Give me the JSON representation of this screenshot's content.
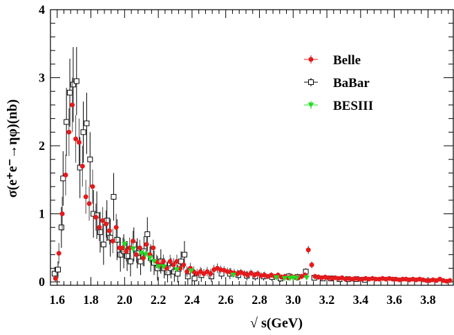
{
  "chart_data": {
    "type": "scatter",
    "xlabel": "√ s(GeV)",
    "ylabel": "σ(e⁺e⁻→ηφ)(nb)",
    "xlim": [
      1.56,
      3.95
    ],
    "ylim": [
      -0.05,
      4.0
    ],
    "x_ticks": [
      "1.6",
      "1.8",
      "2.0",
      "2.2",
      "2.4",
      "2.6",
      "2.8",
      "3.0",
      "3.2",
      "3.4",
      "3.6",
      "3.8"
    ],
    "x_tick_values": [
      1.6,
      1.8,
      2.0,
      2.2,
      2.4,
      2.6,
      2.8,
      3.0,
      3.2,
      3.4,
      3.6,
      3.8
    ],
    "y_ticks": [
      "0",
      "1",
      "2",
      "3",
      "4"
    ],
    "y_tick_values": [
      0,
      1,
      2,
      3,
      4
    ],
    "legend_position": "top-right",
    "colors": {
      "belle": "#e41a1c",
      "babar": "#000000",
      "besiii": "#22dd22"
    },
    "series": [
      {
        "name": "Belle",
        "marker": "filled-circle",
        "color": "#e41a1c",
        "points": [
          [
            1.59,
            0.05,
            0.05
          ],
          [
            1.61,
            0.42,
            0.15
          ],
          [
            1.63,
            1.0,
            0.25
          ],
          [
            1.65,
            1.57,
            0.3
          ],
          [
            1.67,
            2.2,
            0.35
          ],
          [
            1.69,
            2.6,
            0.4
          ],
          [
            1.71,
            2.1,
            0.35
          ],
          [
            1.73,
            2.05,
            0.35
          ],
          [
            1.75,
            1.7,
            0.3
          ],
          [
            1.77,
            1.25,
            0.25
          ],
          [
            1.79,
            1.15,
            0.25
          ],
          [
            1.81,
            1.4,
            0.25
          ],
          [
            1.83,
            0.95,
            0.2
          ],
          [
            1.85,
            0.8,
            0.2
          ],
          [
            1.87,
            0.9,
            0.2
          ],
          [
            1.89,
            0.85,
            0.2
          ],
          [
            1.91,
            0.75,
            0.2
          ],
          [
            1.93,
            0.6,
            0.18
          ],
          [
            1.95,
            0.8,
            0.2
          ],
          [
            1.97,
            0.5,
            0.15
          ],
          [
            1.99,
            0.5,
            0.15
          ],
          [
            2.01,
            0.45,
            0.15
          ],
          [
            2.03,
            0.5,
            0.15
          ],
          [
            2.05,
            0.6,
            0.15
          ],
          [
            2.07,
            0.4,
            0.12
          ],
          [
            2.09,
            0.5,
            0.12
          ],
          [
            2.11,
            0.35,
            0.12
          ],
          [
            2.13,
            0.55,
            0.12
          ],
          [
            2.15,
            0.4,
            0.12
          ],
          [
            2.17,
            0.5,
            0.12
          ],
          [
            2.19,
            0.3,
            0.1
          ],
          [
            2.21,
            0.25,
            0.1
          ],
          [
            2.23,
            0.3,
            0.1
          ],
          [
            2.25,
            0.2,
            0.1
          ],
          [
            2.27,
            0.3,
            0.1
          ],
          [
            2.29,
            0.25,
            0.1
          ],
          [
            2.31,
            0.3,
            0.1
          ],
          [
            2.33,
            0.2,
            0.08
          ],
          [
            2.35,
            0.25,
            0.08
          ],
          [
            2.37,
            0.15,
            0.08
          ],
          [
            2.39,
            0.2,
            0.08
          ],
          [
            2.41,
            0.15,
            0.08
          ],
          [
            2.43,
            0.12,
            0.07
          ],
          [
            2.45,
            0.15,
            0.07
          ],
          [
            2.47,
            0.12,
            0.07
          ],
          [
            2.49,
            0.15,
            0.07
          ],
          [
            2.51,
            0.12,
            0.07
          ],
          [
            2.53,
            0.18,
            0.07
          ],
          [
            2.55,
            0.2,
            0.07
          ],
          [
            2.57,
            0.18,
            0.06
          ],
          [
            2.59,
            0.17,
            0.06
          ],
          [
            2.61,
            0.15,
            0.06
          ],
          [
            2.63,
            0.14,
            0.06
          ],
          [
            2.65,
            0.13,
            0.06
          ],
          [
            2.67,
            0.12,
            0.06
          ],
          [
            2.69,
            0.14,
            0.05
          ],
          [
            2.71,
            0.12,
            0.05
          ],
          [
            2.73,
            0.1,
            0.05
          ],
          [
            2.75,
            0.13,
            0.05
          ],
          [
            2.77,
            0.1,
            0.05
          ],
          [
            2.79,
            0.12,
            0.05
          ],
          [
            2.81,
            0.09,
            0.05
          ],
          [
            2.83,
            0.1,
            0.05
          ],
          [
            2.85,
            0.08,
            0.04
          ],
          [
            2.87,
            0.1,
            0.04
          ],
          [
            2.89,
            0.08,
            0.04
          ],
          [
            2.91,
            0.1,
            0.04
          ],
          [
            2.93,
            0.07,
            0.04
          ],
          [
            2.95,
            0.08,
            0.04
          ],
          [
            2.97,
            0.06,
            0.04
          ],
          [
            2.99,
            0.08,
            0.04
          ],
          [
            3.01,
            0.07,
            0.04
          ],
          [
            3.03,
            0.06,
            0.04
          ],
          [
            3.05,
            0.08,
            0.04
          ],
          [
            3.07,
            0.1,
            0.04
          ],
          [
            3.09,
            0.47,
            0.06
          ],
          [
            3.11,
            0.25,
            0.05
          ],
          [
            3.13,
            0.08,
            0.04
          ],
          [
            3.15,
            0.07,
            0.04
          ],
          [
            3.17,
            0.06,
            0.03
          ],
          [
            3.19,
            0.07,
            0.03
          ],
          [
            3.21,
            0.06,
            0.03
          ],
          [
            3.23,
            0.05,
            0.03
          ],
          [
            3.25,
            0.06,
            0.03
          ],
          [
            3.27,
            0.05,
            0.03
          ],
          [
            3.29,
            0.06,
            0.03
          ],
          [
            3.31,
            0.04,
            0.03
          ],
          [
            3.33,
            0.05,
            0.03
          ],
          [
            3.35,
            0.04,
            0.03
          ],
          [
            3.37,
            0.05,
            0.03
          ],
          [
            3.39,
            0.04,
            0.03
          ],
          [
            3.41,
            0.04,
            0.03
          ],
          [
            3.43,
            0.05,
            0.03
          ],
          [
            3.45,
            0.04,
            0.03
          ],
          [
            3.47,
            0.05,
            0.03
          ],
          [
            3.49,
            0.04,
            0.03
          ],
          [
            3.51,
            0.04,
            0.03
          ],
          [
            3.53,
            0.05,
            0.03
          ],
          [
            3.55,
            0.04,
            0.03
          ],
          [
            3.57,
            0.05,
            0.03
          ],
          [
            3.59,
            0.04,
            0.03
          ],
          [
            3.61,
            0.04,
            0.03
          ],
          [
            3.63,
            0.03,
            0.03
          ],
          [
            3.65,
            0.04,
            0.03
          ],
          [
            3.67,
            0.04,
            0.03
          ],
          [
            3.69,
            0.03,
            0.03
          ],
          [
            3.71,
            0.04,
            0.03
          ],
          [
            3.73,
            0.03,
            0.03
          ],
          [
            3.75,
            0.04,
            0.03
          ],
          [
            3.77,
            0.03,
            0.03
          ],
          [
            3.79,
            0.02,
            0.03
          ],
          [
            3.81,
            0.02,
            0.03
          ],
          [
            3.83,
            0.03,
            0.03
          ],
          [
            3.85,
            0.02,
            0.03
          ],
          [
            3.87,
            0.04,
            0.03
          ],
          [
            3.89,
            0.02,
            0.03
          ],
          [
            3.91,
            0.01,
            0.03
          ],
          [
            3.93,
            0.02,
            0.03
          ]
        ]
      },
      {
        "name": "BaBar",
        "marker": "open-square",
        "color": "#000000",
        "points": [
          [
            1.585,
            0.12,
            0.1
          ],
          [
            1.605,
            0.18,
            0.12
          ],
          [
            1.625,
            0.8,
            0.3
          ],
          [
            1.635,
            1.52,
            0.4
          ],
          [
            1.655,
            2.35,
            0.5
          ],
          [
            1.675,
            2.78,
            0.5
          ],
          [
            1.695,
            2.9,
            0.55
          ],
          [
            1.715,
            2.95,
            0.5
          ],
          [
            1.735,
            1.68,
            0.45
          ],
          [
            1.755,
            2.2,
            0.45
          ],
          [
            1.775,
            2.33,
            0.45
          ],
          [
            1.795,
            1.8,
            0.4
          ],
          [
            1.815,
            1.0,
            0.35
          ],
          [
            1.835,
            0.98,
            0.35
          ],
          [
            1.855,
            0.73,
            0.3
          ],
          [
            1.875,
            0.55,
            0.3
          ],
          [
            1.895,
            0.9,
            0.3
          ],
          [
            1.915,
            0.65,
            0.28
          ],
          [
            1.935,
            1.25,
            0.35
          ],
          [
            1.955,
            0.62,
            0.3
          ],
          [
            1.975,
            0.4,
            0.25
          ],
          [
            1.995,
            0.45,
            0.25
          ],
          [
            2.015,
            0.38,
            0.22
          ],
          [
            2.035,
            0.3,
            0.22
          ],
          [
            2.055,
            0.55,
            0.25
          ],
          [
            2.075,
            0.42,
            0.22
          ],
          [
            2.095,
            0.3,
            0.2
          ],
          [
            2.115,
            0.45,
            0.22
          ],
          [
            2.135,
            0.7,
            0.25
          ],
          [
            2.155,
            0.35,
            0.2
          ],
          [
            2.175,
            0.28,
            0.18
          ],
          [
            2.195,
            0.2,
            0.18
          ],
          [
            2.215,
            0.3,
            0.18
          ],
          [
            2.235,
            0.2,
            0.15
          ],
          [
            2.255,
            0.14,
            0.15
          ],
          [
            2.275,
            0.2,
            0.15
          ],
          [
            2.295,
            0.15,
            0.15
          ],
          [
            2.315,
            0.12,
            0.13
          ],
          [
            2.335,
            0.3,
            0.15
          ],
          [
            2.355,
            0.4,
            0.2
          ],
          [
            2.375,
            0.08,
            0.12
          ],
          [
            2.415,
            0.05,
            0.1
          ],
          [
            2.455,
            0.1,
            0.1
          ],
          [
            2.515,
            0.08,
            0.08
          ],
          [
            2.575,
            0.12,
            0.08
          ],
          [
            2.625,
            0.12,
            0.08
          ],
          [
            2.675,
            0.1,
            0.07
          ],
          [
            2.725,
            0.09,
            0.07
          ],
          [
            2.775,
            0.08,
            0.06
          ],
          [
            2.825,
            0.08,
            0.06
          ],
          [
            2.875,
            0.07,
            0.06
          ],
          [
            2.925,
            0.05,
            0.05
          ],
          [
            2.975,
            0.08,
            0.05
          ],
          [
            3.025,
            0.07,
            0.05
          ],
          [
            3.075,
            0.15,
            0.05
          ],
          [
            3.125,
            0.06,
            0.04
          ],
          [
            3.175,
            0.05,
            0.04
          ],
          [
            3.225,
            0.05,
            0.04
          ],
          [
            3.275,
            0.04,
            0.04
          ],
          [
            3.325,
            0.04,
            0.04
          ],
          [
            3.375,
            0.04,
            0.04
          ],
          [
            3.425,
            0.03,
            0.04
          ]
        ]
      },
      {
        "name": "BESIII",
        "marker": "down-triangle",
        "color": "#22dd22",
        "points": [
          [
            2.0,
            0.55,
            0.08
          ],
          [
            2.05,
            0.48,
            0.06
          ],
          [
            2.1,
            0.42,
            0.05
          ],
          [
            2.125,
            0.4,
            0.06
          ],
          [
            2.15,
            0.35,
            0.05
          ],
          [
            2.175,
            0.3,
            0.04
          ],
          [
            2.2,
            0.22,
            0.04
          ],
          [
            2.232,
            0.22,
            0.04
          ],
          [
            2.309,
            0.18,
            0.03
          ],
          [
            2.396,
            0.16,
            0.03
          ],
          [
            2.644,
            0.1,
            0.02
          ],
          [
            2.9,
            0.06,
            0.02
          ],
          [
            2.95,
            0.05,
            0.02
          ],
          [
            2.981,
            0.05,
            0.02
          ],
          [
            3.0,
            0.06,
            0.02
          ],
          [
            3.02,
            0.05,
            0.02
          ],
          [
            3.08,
            0.06,
            0.02
          ]
        ]
      }
    ]
  }
}
